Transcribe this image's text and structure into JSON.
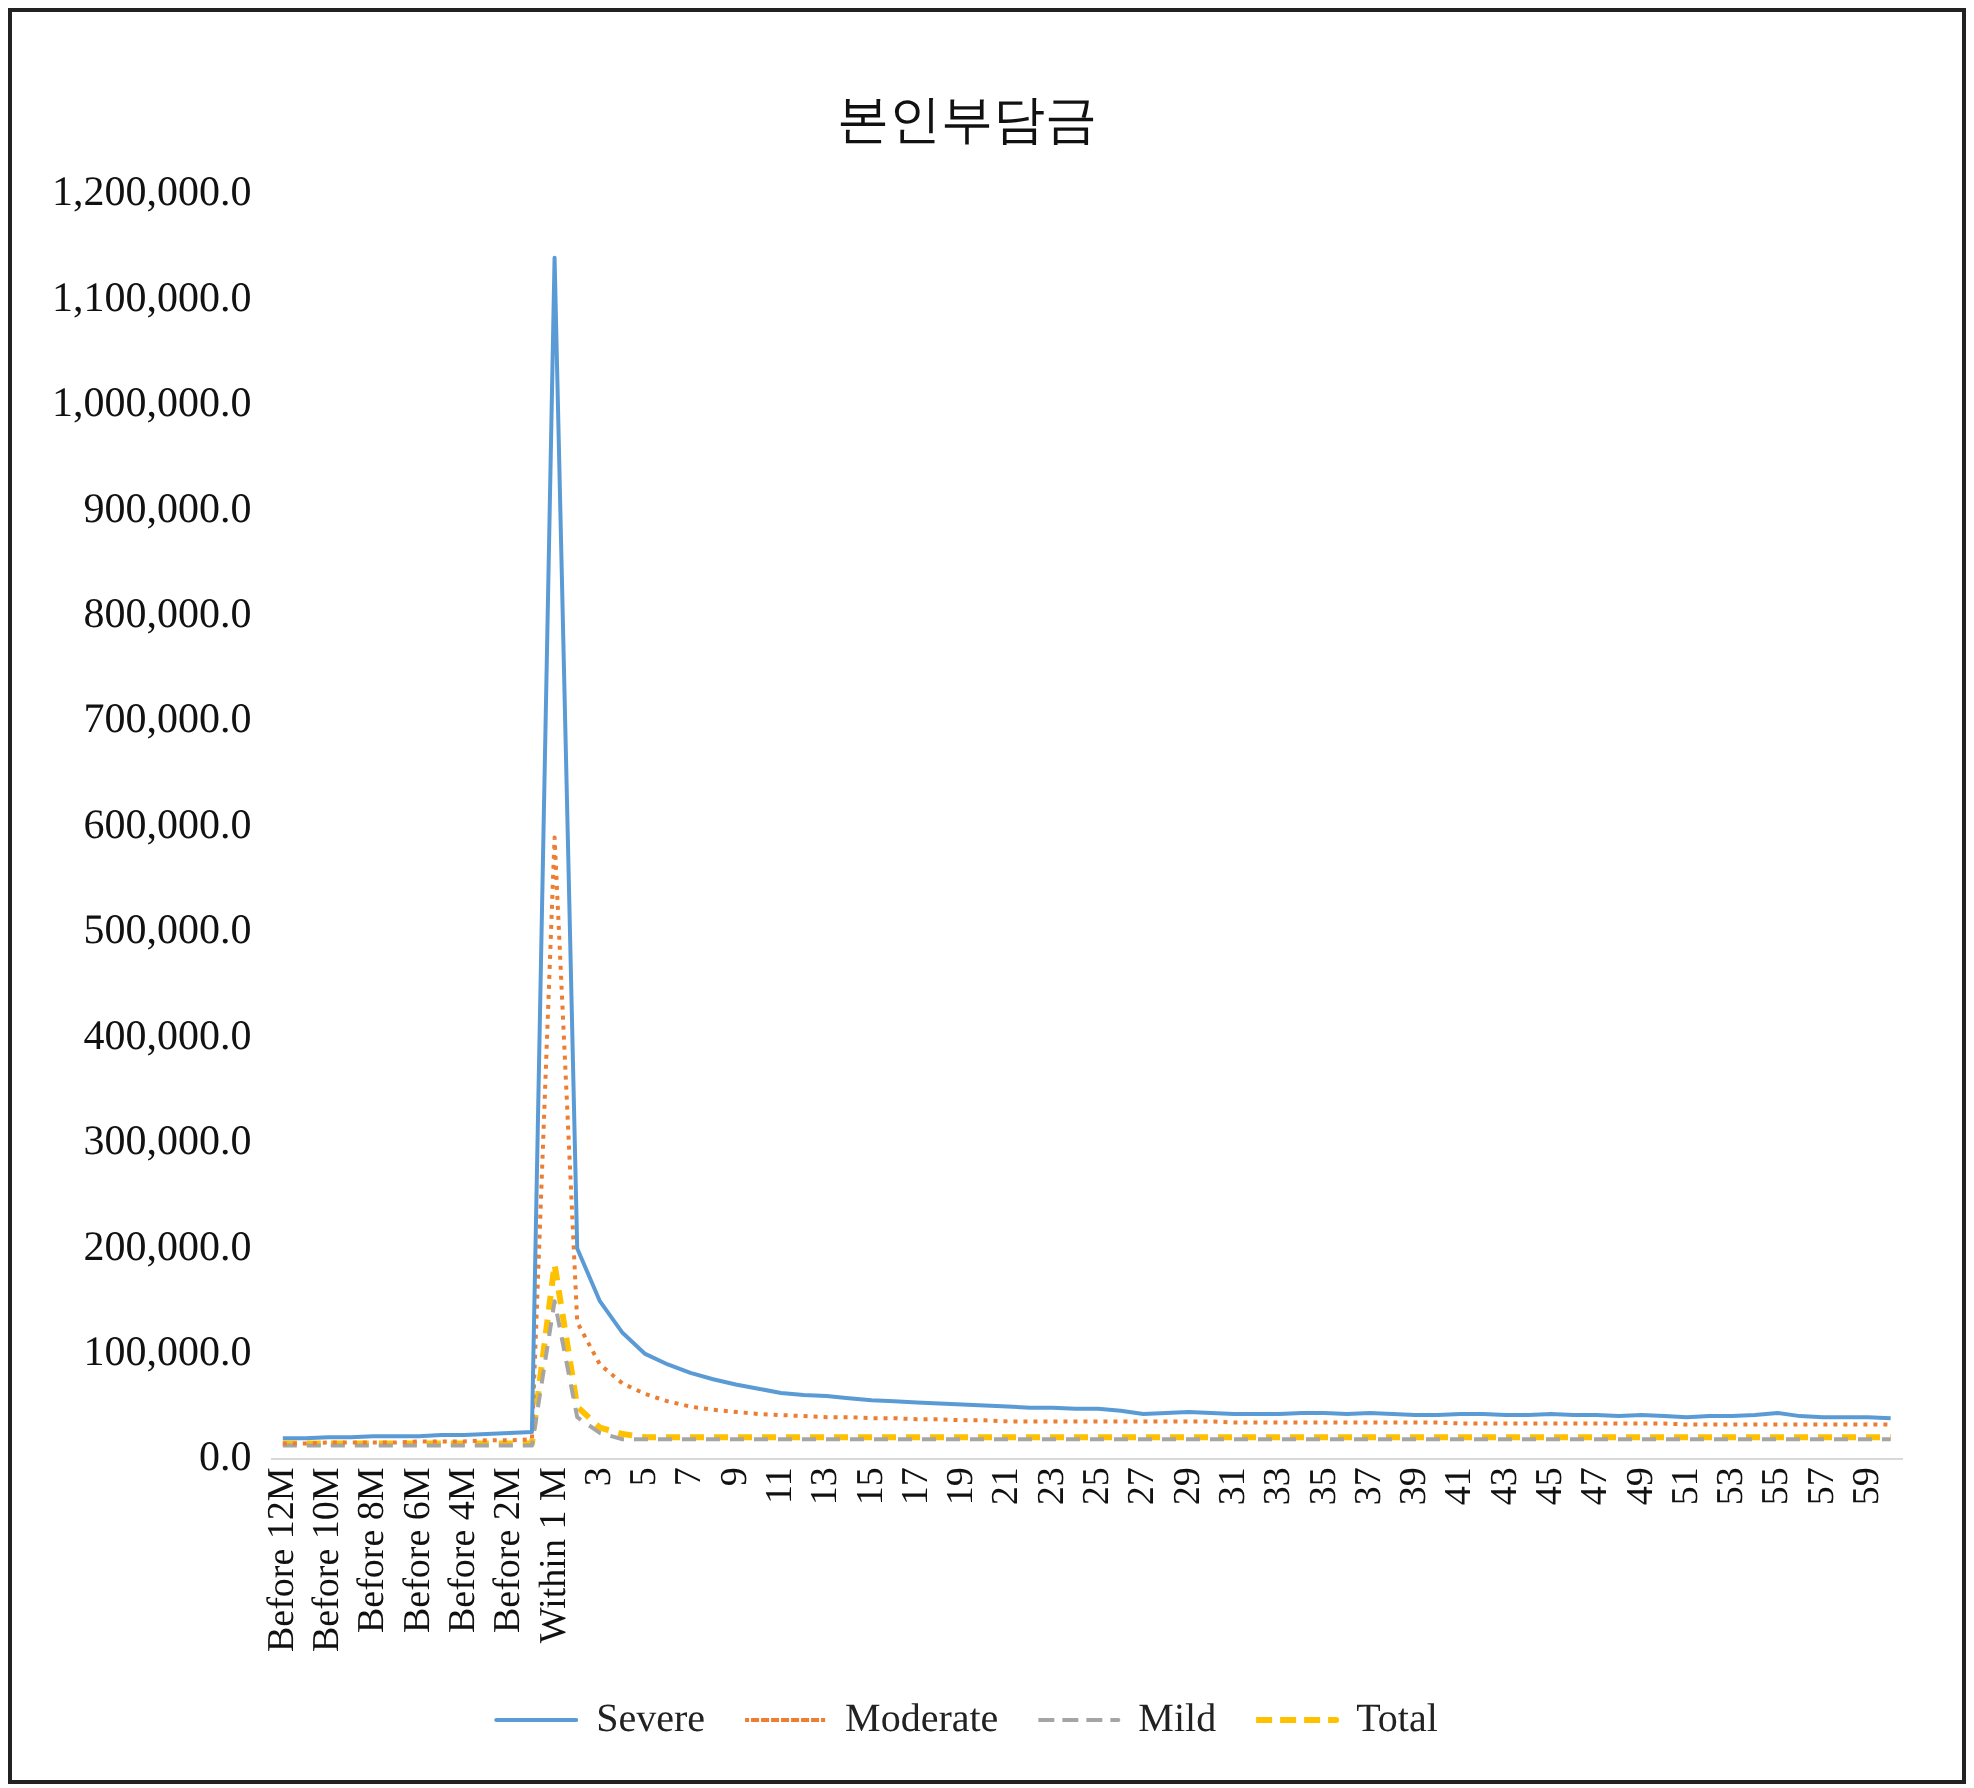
{
  "chart_data": {
    "type": "line",
    "title": "본인부담금",
    "categories": [
      "Before 12M",
      null,
      "Before 10M",
      null,
      "Before 8M",
      null,
      "Before 6M",
      null,
      "Before 4M",
      null,
      "Before 2M",
      null,
      "Within 1 M",
      null,
      "3",
      null,
      "5",
      null,
      "7",
      null,
      "9",
      null,
      "11",
      null,
      "13",
      null,
      "15",
      null,
      "17",
      null,
      "19",
      null,
      "21",
      null,
      "23",
      null,
      "25",
      null,
      "27",
      null,
      "29",
      null,
      "31",
      null,
      "33",
      null,
      "35",
      null,
      "37",
      null,
      "39",
      null,
      "41",
      null,
      "43",
      null,
      "45",
      null,
      "47",
      null,
      "49",
      null,
      "51",
      null,
      "53",
      null,
      "55",
      null,
      "57",
      null,
      "59",
      null
    ],
    "series": [
      {
        "name": "Severe",
        "color": "#5b9bd5",
        "line_style": "solid",
        "values": [
          20000,
          20000,
          21000,
          21000,
          22000,
          22000,
          22000,
          23000,
          23000,
          24000,
          25000,
          26000,
          1140000,
          200000,
          150000,
          120000,
          100000,
          90000,
          82000,
          76000,
          71000,
          67000,
          63000,
          61000,
          60000,
          58000,
          56000,
          55000,
          54000,
          53000,
          52000,
          51000,
          50000,
          49000,
          49000,
          48000,
          48000,
          46000,
          43000,
          44000,
          45000,
          44000,
          43000,
          43000,
          43000,
          44000,
          44000,
          43000,
          44000,
          43000,
          42000,
          42000,
          43000,
          43000,
          42000,
          42000,
          43000,
          42000,
          42000,
          41000,
          42000,
          41000,
          40000,
          41000,
          41000,
          42000,
          44000,
          41000,
          40000,
          40000,
          40000,
          39000
        ]
      },
      {
        "name": "Moderate",
        "color": "#ed7d31",
        "line_style": "dotted",
        "values": [
          15000,
          15000,
          16000,
          16000,
          16000,
          16000,
          17000,
          17000,
          17000,
          18000,
          18000,
          19000,
          590000,
          130000,
          90000,
          72000,
          62000,
          55000,
          50000,
          47000,
          45000,
          43000,
          42000,
          41000,
          40000,
          40000,
          39000,
          39000,
          38000,
          38000,
          37000,
          37000,
          36000,
          36000,
          36000,
          36000,
          36000,
          36000,
          36000,
          36000,
          36000,
          36000,
          35000,
          35000,
          35000,
          35000,
          35000,
          35000,
          35000,
          35000,
          35000,
          35000,
          34000,
          34000,
          34000,
          34000,
          34000,
          34000,
          34000,
          34000,
          34000,
          34000,
          33000,
          33000,
          33000,
          33000,
          33000,
          33000,
          33000,
          33000,
          33000,
          33000
        ]
      },
      {
        "name": "Mild",
        "color": "#a5a5a5",
        "line_style": "dashed",
        "values": [
          13000,
          13000,
          13000,
          13000,
          13000,
          13000,
          13000,
          13000,
          13000,
          13000,
          13000,
          13000,
          150000,
          40000,
          25000,
          19000,
          19000,
          19000,
          19000,
          19000,
          19000,
          19000,
          19000,
          19000,
          19000,
          19000,
          19000,
          19000,
          19000,
          19000,
          19000,
          19000,
          19000,
          19000,
          19000,
          19000,
          19000,
          19000,
          19000,
          19000,
          19000,
          19000,
          19000,
          19000,
          19000,
          19000,
          19000,
          19000,
          19000,
          19000,
          19000,
          19000,
          19000,
          19000,
          19000,
          19000,
          19000,
          19000,
          19000,
          19000,
          19000,
          19000,
          19000,
          19000,
          19000,
          19000,
          19000,
          19000,
          19000,
          19000,
          19000,
          19000
        ]
      },
      {
        "name": "Total",
        "color": "#ffc000",
        "line_style": "dashed",
        "values": [
          15000,
          15000,
          15000,
          15000,
          15000,
          15000,
          15000,
          15000,
          15000,
          15000,
          15000,
          15000,
          185000,
          50000,
          30000,
          24000,
          21000,
          21000,
          21000,
          21000,
          21000,
          21000,
          21000,
          21000,
          21000,
          21000,
          21000,
          21000,
          21000,
          21000,
          21000,
          21000,
          21000,
          21000,
          21000,
          21000,
          21000,
          21000,
          21000,
          21000,
          21000,
          21000,
          21000,
          21000,
          21000,
          21000,
          21000,
          21000,
          21000,
          21000,
          21000,
          21000,
          21000,
          21000,
          21000,
          21000,
          21000,
          21000,
          21000,
          21000,
          21000,
          21000,
          21000,
          21000,
          21000,
          21000,
          21000,
          21000,
          21000,
          21000,
          21000,
          21000
        ]
      }
    ],
    "ylim": [
      0,
      1200000
    ],
    "yticks": [
      {
        "value": 0,
        "label": "0.0"
      },
      {
        "value": 100000,
        "label": "100,000.0"
      },
      {
        "value": 200000,
        "label": "200,000.0"
      },
      {
        "value": 300000,
        "label": "300,000.0"
      },
      {
        "value": 400000,
        "label": "400,000.0"
      },
      {
        "value": 500000,
        "label": "500,000.0"
      },
      {
        "value": 600000,
        "label": "600,000.0"
      },
      {
        "value": 700000,
        "label": "700,000.0"
      },
      {
        "value": 800000,
        "label": "800,000.0"
      },
      {
        "value": 900000,
        "label": "900,000.0"
      },
      {
        "value": 1000000,
        "label": "1,000,000.0"
      },
      {
        "value": 1100000,
        "label": "1,100,000.0"
      },
      {
        "value": 1200000,
        "label": "1,200,000.0"
      }
    ],
    "grid": false,
    "legend": "bottom",
    "marker": "none"
  }
}
